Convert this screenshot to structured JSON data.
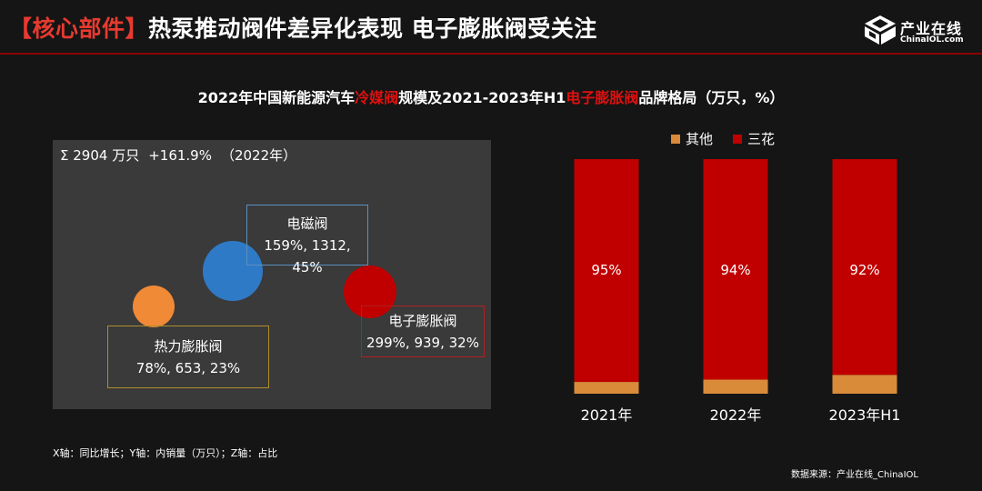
{
  "header": {
    "bracket_text": "【核心部件】",
    "title": "热泵推动阀件差异化表现 电子膨胀阀受关注"
  },
  "logo": {
    "name_cn": "产业在线",
    "name_en": "ChinaIOL.com",
    "icon": "chinaiol-logo-icon"
  },
  "chart_title": {
    "part1": "2022年中国新能源汽车",
    "highlight1": "冷媒阀",
    "part2": "规模及2021-2023年H1",
    "highlight2": "电子膨胀阀",
    "part3": "品牌格局（万只，%）"
  },
  "chart_data": [
    {
      "type": "scatter",
      "subtype": "bubble",
      "summary": {
        "total": "Σ 2904 万只",
        "growth": "+161.9%",
        "year": "（2022年）"
      },
      "axis_note": "X轴：同比增长；Y轴：内销量（万只）；Z轴：占比",
      "points": [
        {
          "name": "热力膨胀阀",
          "x": 78,
          "y": 653,
          "z": 23,
          "label": "78%, 653, 23%",
          "color": "#f08a37",
          "border": "#b08c2a"
        },
        {
          "name": "电磁阀",
          "x": 159,
          "y": 1312,
          "z": 45,
          "label": "159%, 1312, 45%",
          "color": "#2f7ac6",
          "border": "#5b8fc0"
        },
        {
          "name": "电子膨胀阀",
          "x": 299,
          "y": 939,
          "z": 32,
          "label": "299%, 939, 32%",
          "color": "#c00000",
          "border": "#b32020"
        }
      ]
    },
    {
      "type": "bar",
      "subtype": "stacked-100",
      "categories": [
        "2021年",
        "2022年",
        "2023年H1"
      ],
      "series": [
        {
          "name": "其他",
          "color": "#d98b3a",
          "values": [
            5,
            6,
            8
          ]
        },
        {
          "name": "三花",
          "color": "#c00000",
          "values": [
            95,
            94,
            92
          ],
          "labels": [
            "95%",
            "94%",
            "92%"
          ]
        }
      ],
      "legend_position": "top"
    }
  ],
  "source": "数据来源：产业在线_ChinaIOL"
}
